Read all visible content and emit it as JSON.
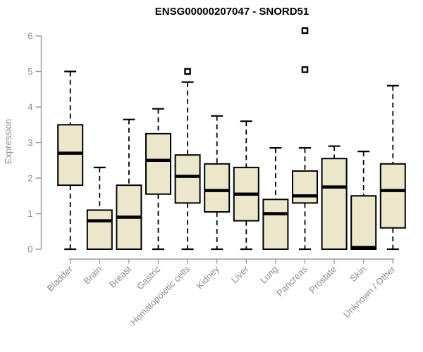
{
  "chart_data": {
    "type": "boxplot",
    "title": "ENSG00000207047 - SNORD51",
    "xlabel": "",
    "ylabel": "Expression",
    "ylim": [
      0,
      6
    ],
    "yticks": [
      0,
      1,
      2,
      3,
      4,
      5,
      6
    ],
    "grid": false,
    "legend": "none",
    "categories": [
      "Bladder",
      "Brain",
      "Breast",
      "Gastric",
      "Hematopoietic cells",
      "Kidney",
      "Liver",
      "Lung",
      "Pancreas",
      "Prostate",
      "Skin",
      "Unknown / Other"
    ],
    "boxes": [
      {
        "category": "Bladder",
        "whisker_low": 0.0,
        "q1": 1.8,
        "median": 2.7,
        "q3": 3.5,
        "whisker_high": 5.0,
        "outliers": []
      },
      {
        "category": "Brain",
        "whisker_low": 0.0,
        "q1": 0.0,
        "median": 0.8,
        "q3": 1.1,
        "whisker_high": 2.3,
        "outliers": []
      },
      {
        "category": "Breast",
        "whisker_low": 0.0,
        "q1": 0.0,
        "median": 0.9,
        "q3": 1.8,
        "whisker_high": 3.65,
        "outliers": []
      },
      {
        "category": "Gastric",
        "whisker_low": 0.0,
        "q1": 1.55,
        "median": 2.5,
        "q3": 3.25,
        "whisker_high": 3.95,
        "outliers": []
      },
      {
        "category": "Hematopoietic cells",
        "whisker_low": 0.0,
        "q1": 1.3,
        "median": 2.05,
        "q3": 2.65,
        "whisker_high": 4.7,
        "outliers": [
          5.0
        ]
      },
      {
        "category": "Kidney",
        "whisker_low": 0.0,
        "q1": 1.05,
        "median": 1.65,
        "q3": 2.4,
        "whisker_high": 3.75,
        "outliers": []
      },
      {
        "category": "Liver",
        "whisker_low": 0.0,
        "q1": 0.8,
        "median": 1.55,
        "q3": 2.3,
        "whisker_high": 3.6,
        "outliers": []
      },
      {
        "category": "Lung",
        "whisker_low": 0.0,
        "q1": 0.0,
        "median": 1.0,
        "q3": 1.4,
        "whisker_high": 2.85,
        "outliers": []
      },
      {
        "category": "Pancreas",
        "whisker_low": 0.0,
        "q1": 1.3,
        "median": 1.5,
        "q3": 2.2,
        "whisker_high": 2.85,
        "outliers": [
          5.05,
          6.15
        ]
      },
      {
        "category": "Prostate",
        "whisker_low": 0.0,
        "q1": 0.0,
        "median": 1.75,
        "q3": 2.55,
        "whisker_high": 2.9,
        "outliers": []
      },
      {
        "category": "Skin",
        "whisker_low": 0.0,
        "q1": 0.0,
        "median": 0.05,
        "q3": 1.5,
        "whisker_high": 2.75,
        "outliers": []
      },
      {
        "category": "Unknown / Other",
        "whisker_low": 0.0,
        "q1": 0.6,
        "median": 1.65,
        "q3": 2.4,
        "whisker_high": 4.6,
        "outliers": []
      }
    ],
    "colors": {
      "box_fill": "#ece7cb",
      "box_border": "#000000",
      "median": "#000000",
      "whisker": "#000000",
      "outlier": "#000000",
      "axis": "#9a9a9a",
      "tick_label": "#8c8c8c",
      "title": "#000000",
      "background": "#ffffff"
    }
  }
}
